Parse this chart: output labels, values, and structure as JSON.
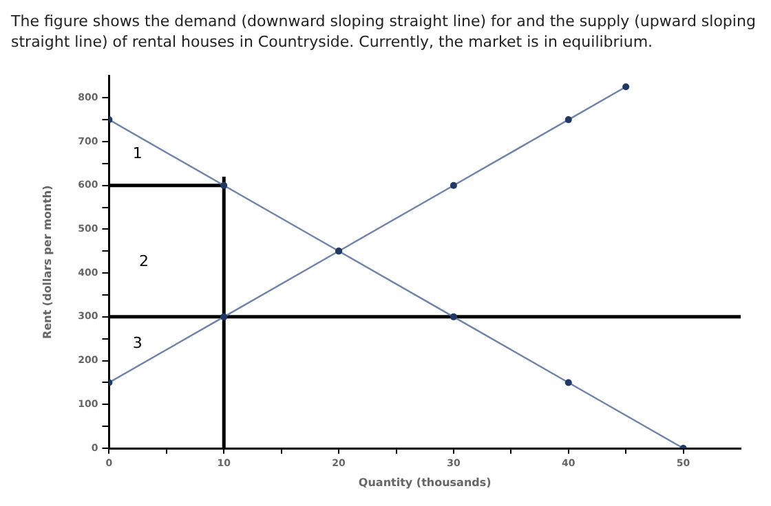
{
  "chart_data": {
    "type": "line",
    "title": "The figure shows the demand (downward sloping straight line) for and the supply (upward sloping straight line) of rental houses in Countryside. Currently, the market is in equilibrium.",
    "xlabel": "Quantity (thousands)",
    "ylabel": "Rent (dollars per month)",
    "xlim": [
      0,
      55
    ],
    "xticks": [
      0,
      {
        "value": 5,
        "label": null
      },
      10,
      {
        "value": 15,
        "label": null
      },
      20,
      {
        "value": 25,
        "label": null
      },
      30,
      {
        "value": 35,
        "label": null
      },
      40,
      {
        "value": 45,
        "label": null
      },
      50
    ],
    "ylim": [
      0,
      850
    ],
    "yticks": [
      0,
      {
        "value": 50,
        "label": null
      },
      100,
      {
        "value": 150,
        "label": null
      },
      200,
      {
        "value": 250,
        "label": null
      },
      300,
      {
        "value": 350,
        "label": null
      },
      400,
      {
        "value": 450,
        "label": null
      },
      500,
      {
        "value": 550,
        "label": null
      },
      600,
      {
        "value": 650,
        "label": null
      },
      700,
      {
        "value": 750,
        "label": null
      },
      800
    ],
    "grid": false,
    "legend": false,
    "series": [
      {
        "color": "#6f82a8",
        "marker": "circle",
        "x": [
          0,
          10,
          20,
          30,
          40,
          50
        ],
        "values": [
          750,
          600,
          450,
          300,
          150,
          0
        ]
      },
      {
        "color": "#6f82a8",
        "marker": "circle",
        "x": [
          0,
          10,
          20,
          30,
          40,
          45
        ],
        "values": [
          150,
          300,
          450,
          600,
          750,
          825
        ]
      },
      {
        "color": "#000000",
        "marker": "none",
        "x": [
          0,
          10
        ],
        "values": [
          600,
          600
        ]
      },
      {
        "color": "#000000",
        "marker": "none",
        "x": [
          10,
          10
        ],
        "values": [
          0,
          620
        ]
      },
      {
        "color": "#000000",
        "marker": "none",
        "x": [
          0,
          55
        ],
        "values": [
          300,
          300
        ]
      }
    ],
    "annotations": [
      "1",
      "2",
      "3"
    ]
  }
}
